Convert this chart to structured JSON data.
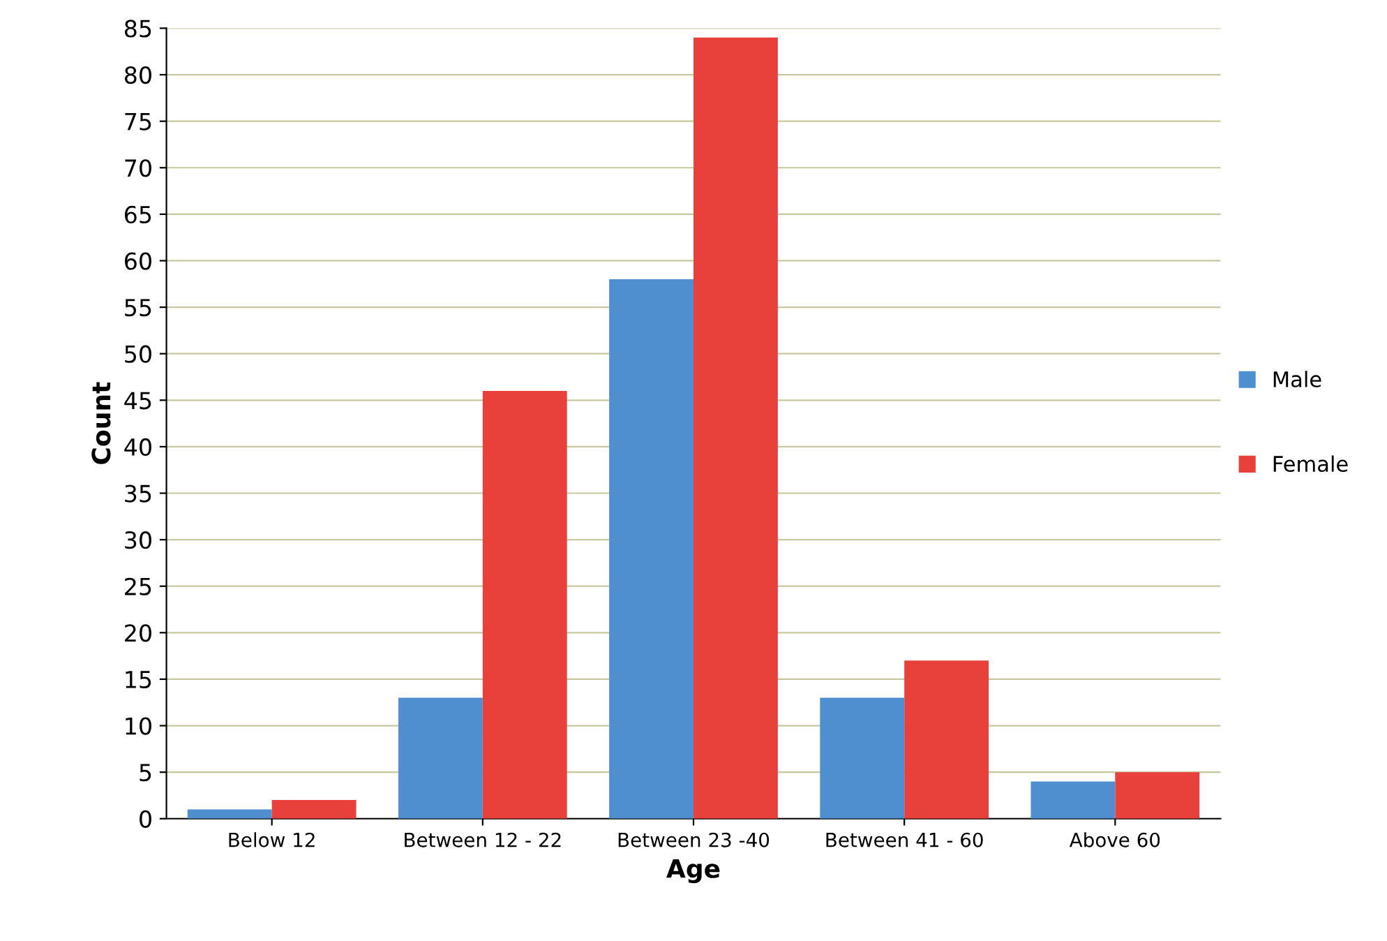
{
  "chart_data": {
    "type": "bar",
    "xlabel": "Age",
    "ylabel": "Count",
    "categories": [
      "Below 12",
      "Between 12 - 22",
      "Between 23 -40",
      "Between 41 - 60",
      "Above 60"
    ],
    "series": [
      {
        "name": "Male",
        "color": "#4f8fd0",
        "values": [
          1,
          13,
          58,
          13,
          4
        ]
      },
      {
        "name": "Female",
        "color": "#e8403a",
        "values": [
          2,
          46,
          84,
          17,
          5
        ]
      }
    ],
    "ylim": [
      0,
      85
    ],
    "yticks": [
      0,
      5,
      10,
      15,
      20,
      25,
      30,
      35,
      40,
      45,
      50,
      55,
      60,
      65,
      70,
      75,
      80,
      85
    ],
    "grid": "y",
    "legend": "right"
  }
}
